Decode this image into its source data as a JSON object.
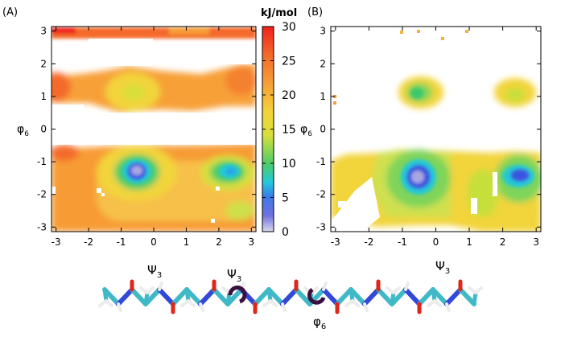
{
  "panels": [
    {
      "label": "(A)"
    },
    {
      "label": "(B)"
    }
  ],
  "colorbar": {
    "unit": "kJ/mol",
    "ticks": [
      "30",
      "25",
      "20",
      "15",
      "10",
      "5",
      "0"
    ],
    "colors": [
      "#d9d9e8",
      "#4a55e0",
      "#22c9d8",
      "#4ccc6a",
      "#f2e13a",
      "#f79b35",
      "#f0201c"
    ]
  },
  "molecule": {
    "labels": {
      "psi_left": "Ψ3",
      "psi_mid": "Ψ3",
      "psi_right": "Ψ3",
      "phi": "φ6"
    },
    "atom_colors": {
      "carbon": "#40b9c6",
      "hydrogen": "#ececec",
      "oxygen": "#e0261b",
      "nitrogen": "#3248d8"
    }
  },
  "chart_data": [
    {
      "type": "heatmap",
      "title": "(A)",
      "xlabel": "",
      "ylabel": "φ6",
      "xlim": [
        -3.14,
        3.14
      ],
      "ylim": [
        -3.14,
        3.14
      ],
      "xticks": [
        "-3",
        "-2",
        "-1",
        "0",
        "1",
        "2",
        "3"
      ],
      "yticks": [
        "3",
        "2",
        "1",
        "0",
        "-1",
        "-2",
        "-3"
      ],
      "colorbar_range": [
        0,
        30
      ],
      "regions": [
        {
          "x": -0.6,
          "y": -1.3,
          "free_energy": 1
        },
        {
          "x": 2.2,
          "y": -1.3,
          "free_energy": 5
        },
        {
          "x": 2.4,
          "y": -2.5,
          "free_energy": 14
        },
        {
          "x": -0.65,
          "y": 1.1,
          "free_energy": 17
        },
        {
          "x": 2.5,
          "y": 1.1,
          "free_energy": 24
        },
        {
          "x": -2.8,
          "y": 1.2,
          "free_energy": 26
        },
        {
          "x": 0.0,
          "y": 3.0,
          "free_energy": 27
        }
      ]
    },
    {
      "type": "heatmap",
      "title": "(B)",
      "xlabel": "",
      "ylabel": "φ6",
      "xlim": [
        -3.14,
        3.14
      ],
      "ylim": [
        -3.14,
        3.14
      ],
      "xticks": [
        "-3",
        "-2",
        "-1",
        "0",
        "1",
        "2",
        "3"
      ],
      "yticks": [
        "3",
        "2",
        "1",
        "0",
        "-1",
        "-2",
        "-3"
      ],
      "colorbar_range": [
        0,
        30
      ],
      "regions": [
        {
          "x": -0.6,
          "y": -1.3,
          "free_energy": 1
        },
        {
          "x": 2.3,
          "y": -1.3,
          "free_energy": 3
        },
        {
          "x": -0.65,
          "y": 1.1,
          "free_energy": 10
        },
        {
          "x": 2.4,
          "y": 1.1,
          "free_energy": 16
        },
        {
          "x": -2.0,
          "y": -1.8,
          "free_energy": 17
        },
        {
          "x": 0.9,
          "y": -2.2,
          "free_energy": 17
        }
      ]
    }
  ]
}
